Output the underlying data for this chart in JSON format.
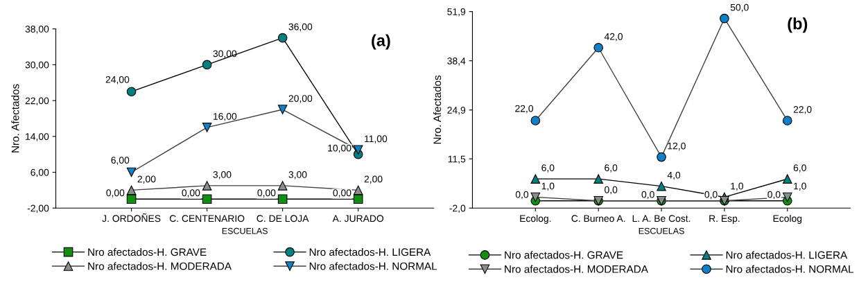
{
  "chart_data": [
    {
      "type": "line",
      "annotations": [
        "(a)"
      ],
      "xlabel": "ESCUELAS",
      "ylabel": "Nro. Afectados",
      "categories": [
        "J. ORDOÑES",
        "C. CENTENARIO",
        "C. DE LOJA",
        "A. JURADO"
      ],
      "ylim": [
        -2,
        38
      ],
      "yticks": [
        {
          "value": -2,
          "label": "-2,00"
        },
        {
          "value": 6,
          "label": "6,00"
        },
        {
          "value": 14,
          "label": "14,00"
        },
        {
          "value": 22,
          "label": "22,00"
        },
        {
          "value": 30,
          "label": "30,00"
        },
        {
          "value": 38,
          "label": "38,00"
        }
      ],
      "grid": false,
      "legend": "bottom",
      "series": [
        {
          "name": "Nro afectados-H. GRAVE",
          "color": "#109010",
          "marker": "square",
          "values": [
            0,
            0,
            0,
            0
          ],
          "value_labels": [
            "0,00",
            "0,00",
            "0,00",
            "0,00"
          ]
        },
        {
          "name": "Nro afectados-H. LIGERA",
          "color": "#008080",
          "marker": "circle",
          "values": [
            24,
            30,
            36,
            10
          ],
          "value_labels": [
            "24,00",
            "30,00",
            "36,00",
            "10,00"
          ]
        },
        {
          "name": "Nro afectados-H. MODERADA",
          "color": "#8c8c8c",
          "marker": "triangle",
          "values": [
            2,
            3,
            3,
            2
          ],
          "value_labels": [
            "2,00",
            "3,00",
            "3,00",
            "2,00"
          ]
        },
        {
          "name": "Nro afectados-H. NORMAL",
          "color": "#1080c8",
          "marker": "triangle_down",
          "values": [
            6,
            16,
            20,
            11
          ],
          "value_labels": [
            "6,00",
            "16,00",
            "20,00",
            "11,00"
          ]
        }
      ]
    },
    {
      "type": "line",
      "annotations": [
        "(b)"
      ],
      "xlabel": "ESCUELAS",
      "ylabel": "Nro. Afectados",
      "categories": [
        "Ecolog.",
        "C. Burneo A.",
        "L. A. Be Cost.",
        "R. Esp.",
        "Ecolog"
      ],
      "ylim": [
        -2,
        51.9
      ],
      "yticks": [
        {
          "value": -2,
          "label": "-2,0"
        },
        {
          "value": 11.5,
          "label": "11,5"
        },
        {
          "value": 24.9,
          "label": "24,9"
        },
        {
          "value": 38.4,
          "label": "38,4"
        },
        {
          "value": 51.9,
          "label": "51,9"
        }
      ],
      "grid": false,
      "legend": "bottom",
      "series": [
        {
          "name": "Nro afectados-H. GRAVE",
          "color": "#109010",
          "marker": "circle",
          "values": [
            0,
            0,
            0,
            0,
            0
          ],
          "value_labels": [
            "0,0",
            null,
            null,
            null,
            "0,0"
          ]
        },
        {
          "name": "Nro afectados-H. LIGERA",
          "color": "#008080",
          "marker": "triangle",
          "values": [
            6,
            6,
            4,
            1,
            6
          ],
          "value_labels": [
            "6,0",
            "6,0",
            "4,0",
            "1,0",
            "6,0"
          ]
        },
        {
          "name": "Nro afectados-H. MODERADA",
          "color": "#8c8c8c",
          "marker": "triangle_down",
          "values": [
            1,
            0,
            0,
            0,
            1
          ],
          "value_labels": [
            "1,0",
            "0,0",
            "0,0",
            "0,0",
            "1,0"
          ]
        },
        {
          "name": "Nro afectados-H. NORMAL",
          "color": "#1080c8",
          "marker": "circle",
          "values": [
            22,
            42,
            12,
            50,
            22
          ],
          "value_labels": [
            "22,0",
            "42,0",
            "12,0",
            "50,0",
            "22,0"
          ]
        }
      ]
    }
  ]
}
